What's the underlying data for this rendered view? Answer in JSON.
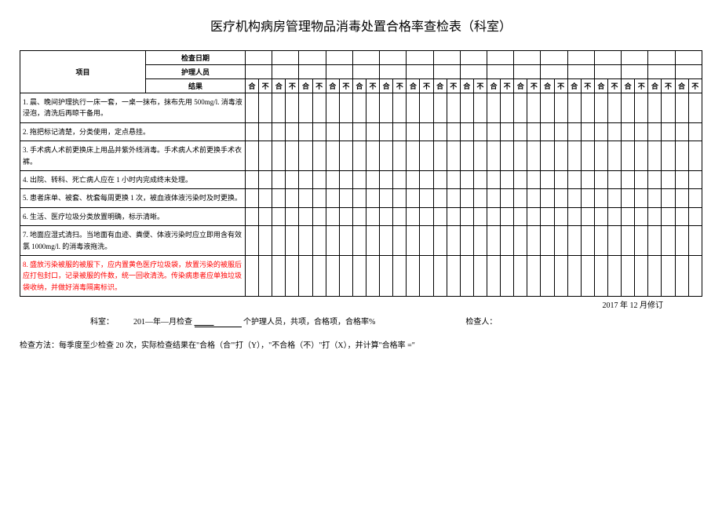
{
  "title": "医疗机构病房管理物品消毒处置合格率查检表（科室）",
  "header": {
    "project": "项目",
    "date": "检查日期",
    "nurse": "护理人员",
    "result": "结果",
    "pass": "合",
    "fail": "不"
  },
  "rows": [
    {
      "num": "1.",
      "text": "晨、晚间护理执行一床一套，一桌一抹布，抹布先用 500mg/l. 消毒液浸泡，清洗后再晾干备用。",
      "red": false
    },
    {
      "num": "2.",
      "text": "拖把标记清楚，分类使用，定点悬挂。",
      "red": false
    },
    {
      "num": "3.",
      "text": "手术病人术前更换床上用品并紫外线消毒。手术病人术前更换手术衣裤。",
      "red": false
    },
    {
      "num": "4.",
      "text": "出院、转科、死亡病人应在 1 小时内完成终末处理。",
      "red": false
    },
    {
      "num": "5.",
      "text": "患者床单、被套、枕套每周更换 1 次，被血液体液污染时及时更换。",
      "red": false
    },
    {
      "num": "6.",
      "text": "生活、医疗垃圾分类放置明确，标示清晰。",
      "red": false
    },
    {
      "num": "7.",
      "text": "地面应湿式清扫。当地面有血迹、粪便、体液污染时应立即用含有效氯 1000mg/l. 的消毒液拖洗。",
      "red": false
    },
    {
      "num": "8.",
      "text": "盛放污染被服的被服下，应内置黄色医疗垃圾袋，放置污染的被服后应打包封口，记录被服的件数，统一回收清洗。传染病患者应单独垃圾袋收纳，并做好消毒隔离标识。",
      "red": true
    }
  ],
  "revision": "2017 年 12 月修订",
  "footer1_dept": "科室：",
  "footer1_text1": "201—年—月检查",
  "footer1_text2": "个护理人员，共项，合格项，合格率%",
  "footer1_checker": "检查人：",
  "footer2": "检查方法：每季度至少检查 20 次，实际检查结果在\"合格（合\"'打（Y），\"不合格（不）\"打（X），并计算\"合格率 =\"",
  "num_check_groups": 17
}
